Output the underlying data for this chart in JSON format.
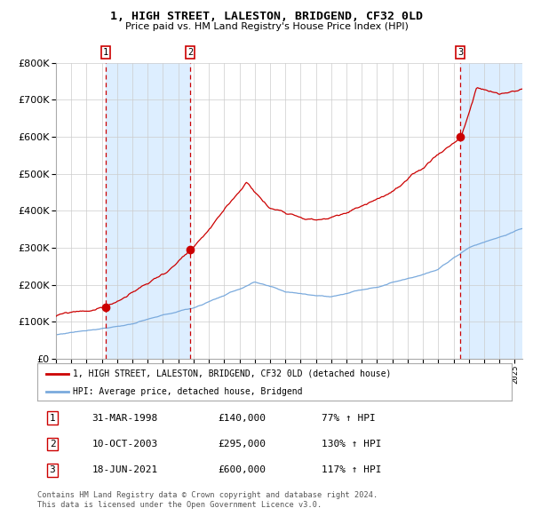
{
  "title": "1, HIGH STREET, LALESTON, BRIDGEND, CF32 0LD",
  "subtitle": "Price paid vs. HM Land Registry's House Price Index (HPI)",
  "legend_line1": "1, HIGH STREET, LALESTON, BRIDGEND, CF32 0LD (detached house)",
  "legend_line2": "HPI: Average price, detached house, Bridgend",
  "sale1_date": "31-MAR-1998",
  "sale1_price": 140000,
  "sale1_pct": "77%",
  "sale2_date": "10-OCT-2003",
  "sale2_price": 295000,
  "sale2_pct": "130%",
  "sale3_date": "18-JUN-2021",
  "sale3_price": 600000,
  "sale3_pct": "117%",
  "footnote": "Contains HM Land Registry data © Crown copyright and database right 2024.\nThis data is licensed under the Open Government Licence v3.0.",
  "red_color": "#cc0000",
  "blue_color": "#7aaadd",
  "bg_shaded": "#ddeeff",
  "ylim_max": 800000,
  "sale1_year": 1998.25,
  "sale2_year": 2003.78,
  "sale3_year": 2021.46,
  "xmin": 1995.0,
  "xmax": 2025.5
}
